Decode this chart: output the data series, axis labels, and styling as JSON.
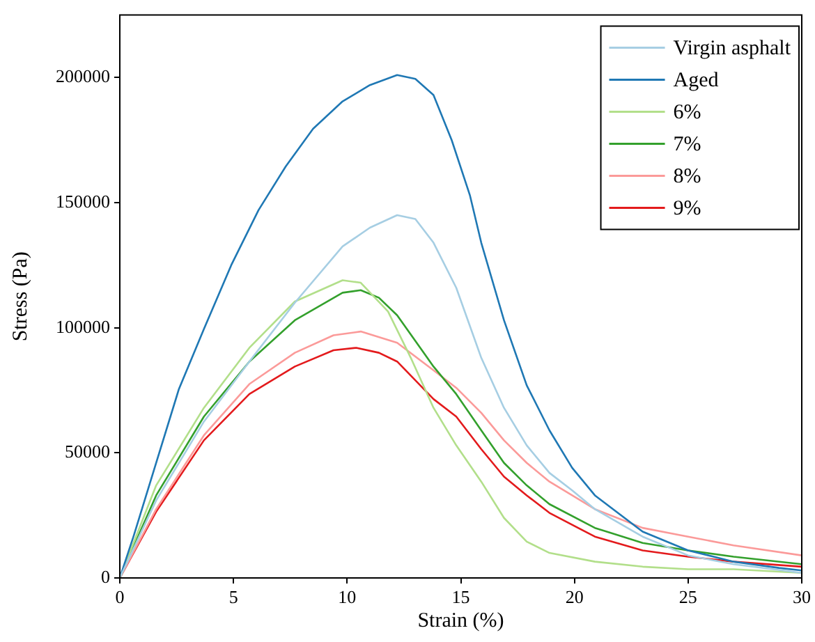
{
  "chart_data": {
    "type": "line",
    "xlabel": "Strain (%)",
    "ylabel": "Stress (Pa)",
    "xlim": [
      0,
      30
    ],
    "xticks": [
      0,
      5,
      10,
      15,
      20,
      25,
      30
    ],
    "ylim": [
      0,
      225000
    ],
    "yticks": [
      0,
      50000,
      100000,
      150000,
      200000
    ],
    "legend": "top right",
    "series": [
      {
        "name": "Virgin asphalt",
        "color": "#a6cee3",
        "x": [
          0,
          1.6,
          3.7,
          5.7,
          7.7,
          9.8,
          11,
          12.2,
          13,
          13.8,
          14.8,
          15.9,
          16.9,
          17.9,
          18.9,
          19.9,
          20.9,
          23,
          25,
          27,
          30
        ],
        "values": [
          0,
          31000,
          62500,
          86500,
          110000,
          132500,
          140000,
          145000,
          143500,
          134000,
          116000,
          88000,
          68000,
          53000,
          42000,
          35000,
          27500,
          16500,
          9000,
          5500,
          2000
        ]
      },
      {
        "name": "Aged",
        "color": "#1f78b4",
        "x": [
          0,
          0.6,
          1.6,
          2.6,
          3.7,
          4.9,
          6.1,
          7.3,
          8.5,
          9.8,
          11,
          12.2,
          13,
          13.8,
          14.6,
          15.4,
          15.9,
          16.9,
          17.9,
          18.9,
          19.9,
          20.9,
          23,
          25,
          27,
          29,
          30
        ],
        "values": [
          0,
          16500,
          46000,
          75500,
          99500,
          125000,
          147000,
          164500,
          179500,
          190500,
          197000,
          201000,
          199500,
          193000,
          175000,
          153000,
          134000,
          103000,
          77000,
          59000,
          44000,
          33000,
          18500,
          11000,
          6500,
          4000,
          3000
        ]
      },
      {
        "name": "6%",
        "color": "#b2df8a",
        "x": [
          0,
          1.6,
          3.7,
          5.7,
          7.7,
          9.8,
          10.6,
          11.8,
          12.8,
          13.8,
          14.8,
          15.9,
          16.9,
          17.9,
          18.9,
          20.9,
          23,
          25,
          27,
          30
        ],
        "values": [
          0,
          37000,
          68000,
          92000,
          110500,
          119000,
          118000,
          106500,
          88000,
          68000,
          53000,
          38500,
          24000,
          14500,
          10000,
          6500,
          4500,
          3500,
          3500,
          2000
        ]
      },
      {
        "name": "7%",
        "color": "#33a02c",
        "x": [
          0,
          1.6,
          3.7,
          5.7,
          7.7,
          9.8,
          10.6,
          11.4,
          12.2,
          13.8,
          14.8,
          15.9,
          16.9,
          17.9,
          18.9,
          20.9,
          23,
          25,
          27,
          30
        ],
        "values": [
          0,
          33000,
          64500,
          86500,
          103000,
          114000,
          115000,
          112000,
          105000,
          84500,
          73500,
          59000,
          46000,
          37000,
          29500,
          20000,
          14000,
          11000,
          8500,
          5500
        ]
      },
      {
        "name": "8%",
        "color": "#fb9a99",
        "x": [
          0,
          1.6,
          3.7,
          5.7,
          7.7,
          9.4,
          10.6,
          12.2,
          13.8,
          14.8,
          15.9,
          16.9,
          17.9,
          18.9,
          20.9,
          23,
          25,
          27,
          30
        ],
        "values": [
          0,
          27500,
          57000,
          77500,
          90000,
          97000,
          98500,
          94000,
          83000,
          76000,
          66000,
          55000,
          46000,
          38500,
          27500,
          20000,
          16500,
          13000,
          9000
        ]
      },
      {
        "name": "9%",
        "color": "#e31a1c",
        "x": [
          0,
          1.6,
          3.7,
          5.7,
          7.7,
          9.4,
          10.4,
          11.4,
          12.2,
          13.8,
          14.8,
          15.9,
          16.9,
          17.9,
          18.9,
          20.9,
          23,
          25,
          27,
          30
        ],
        "values": [
          0,
          26500,
          55000,
          73500,
          84500,
          91000,
          92000,
          90000,
          86500,
          71500,
          64500,
          51500,
          40500,
          33000,
          26000,
          16500,
          11000,
          8500,
          6500,
          4500
        ]
      }
    ]
  }
}
